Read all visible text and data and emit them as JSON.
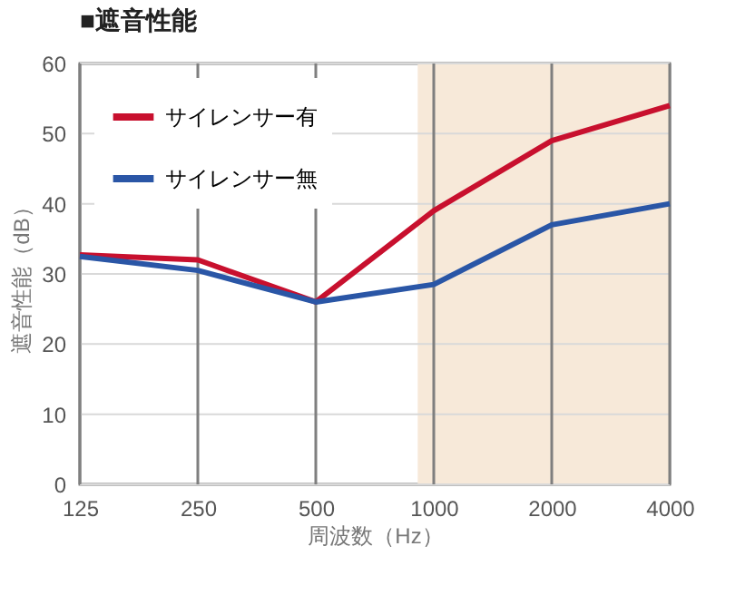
{
  "chart_data": {
    "type": "line",
    "title": "■遮音性能",
    "xlabel": "周波数（Hz）",
    "ylabel": "遮音性能（dB）",
    "x": [
      125,
      250,
      500,
      1000,
      2000,
      4000
    ],
    "series": [
      {
        "name": "サイレンサー有",
        "color": "#c8102e",
        "values": [
          32.7,
          32,
          26,
          39,
          49,
          54
        ]
      },
      {
        "name": "サイレンサー無",
        "color": "#2a56a6",
        "values": [
          32.5,
          30.5,
          26,
          28.5,
          37,
          40
        ]
      }
    ],
    "log": "x",
    "xlim": [
      125,
      4000
    ],
    "xticks": [
      125,
      250,
      500,
      1000,
      2000,
      4000
    ],
    "ylim": [
      0,
      60
    ],
    "yticks": [
      0,
      10,
      20,
      30,
      40,
      50,
      60
    ],
    "bands": [
      {
        "axis": "x",
        "from": 910,
        "to": 4000,
        "color": "#f7e9d9"
      }
    ],
    "grid": true,
    "legend": "top left",
    "marker": "none",
    "line_style": "solid"
  }
}
